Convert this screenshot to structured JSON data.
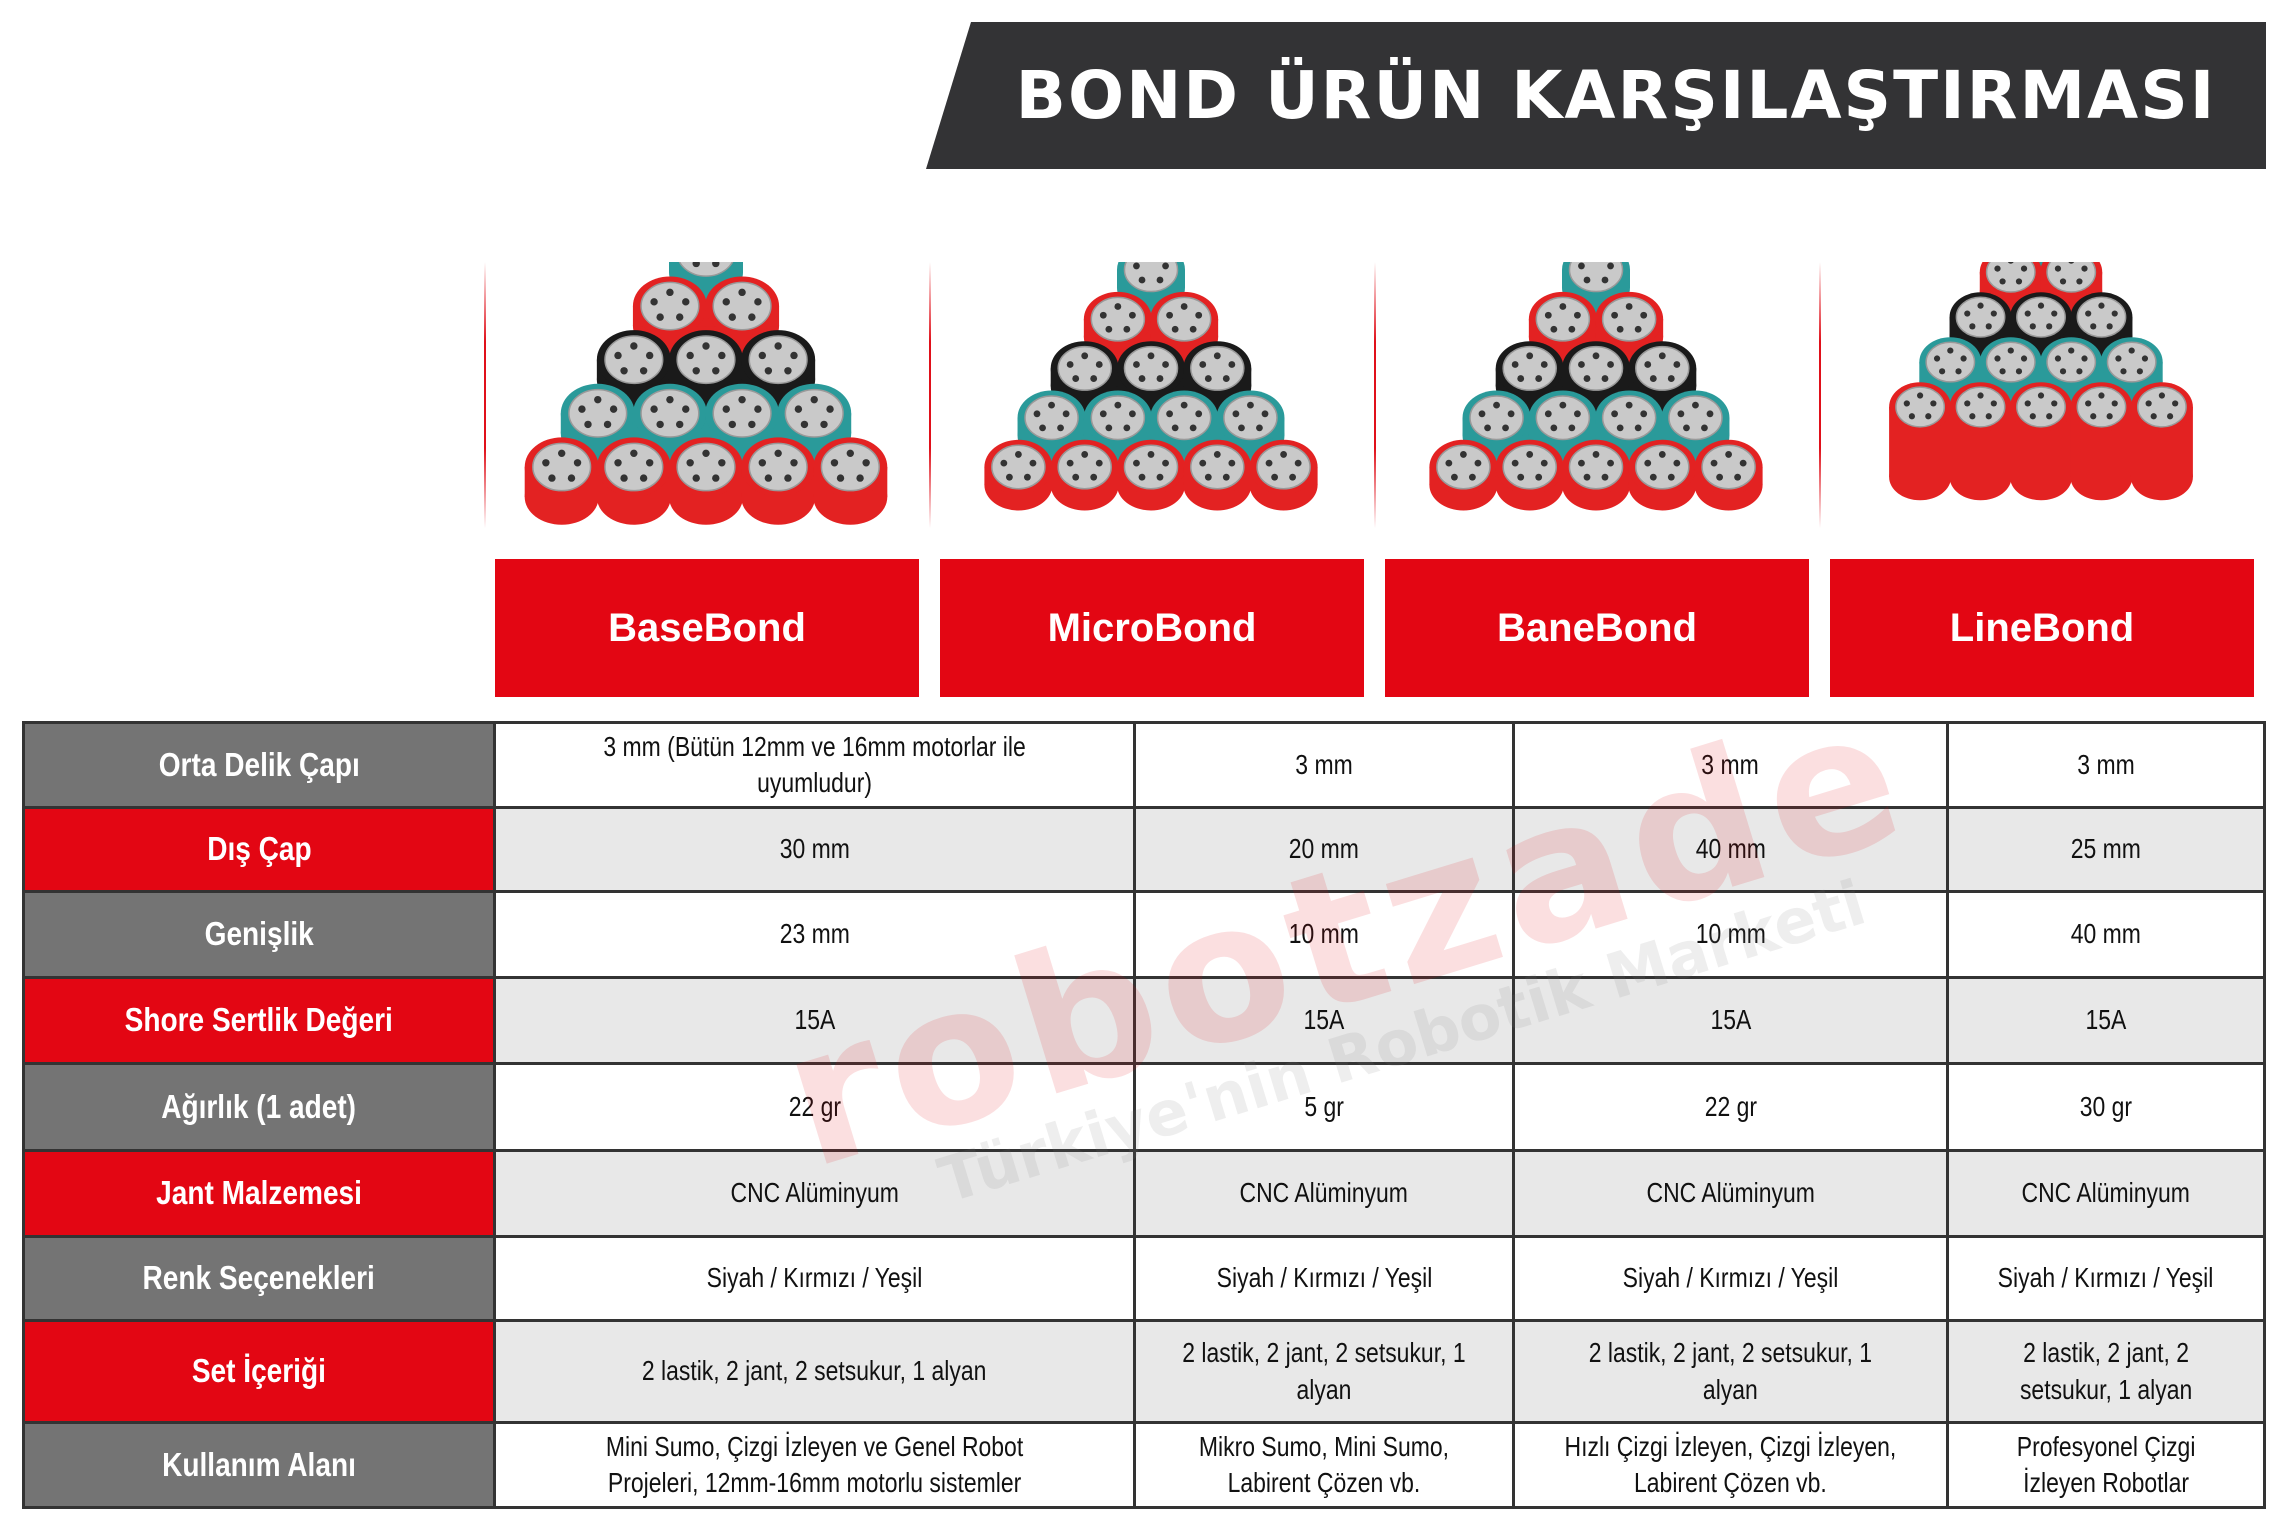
{
  "title": "BOND ÜRÜN KARŞILAŞTIRMASI",
  "watermark": {
    "brand": "robotzade",
    "tagline": "Türkiye'nin Robotik Marketi"
  },
  "colors": {
    "accent_red": "#e30613",
    "label_gray": "#747474",
    "banner": "#333335",
    "wheel_red": "#e32222",
    "wheel_teal": "#2a9a9a",
    "wheel_black": "#1a1a1a",
    "hub": "#c9c9c9"
  },
  "products": [
    {
      "name": "BaseBond",
      "wheel_rows": [
        "teal",
        "red",
        "black",
        "teal",
        "red"
      ],
      "wheel_style": "standard"
    },
    {
      "name": "MicroBond",
      "wheel_rows": [
        "teal",
        "red",
        "black",
        "teal",
        "red"
      ],
      "wheel_style": "narrow"
    },
    {
      "name": "BaneBond",
      "wheel_rows": [
        "teal",
        "red",
        "black",
        "teal",
        "red"
      ],
      "wheel_style": "narrow"
    },
    {
      "name": "LineBond",
      "wheel_rows": [
        "teal",
        "red",
        "black",
        "teal",
        "red"
      ],
      "wheel_style": "tall"
    }
  ],
  "rows": [
    {
      "label": "Orta Delik Çapı",
      "values": [
        "3 mm (Bütün 12mm ve 16mm motorlar ile uyumludur)",
        "3 mm",
        "3 mm",
        "3 mm"
      ]
    },
    {
      "label": "Dış Çap",
      "values": [
        "30 mm",
        "20 mm",
        "40 mm",
        "25 mm"
      ]
    },
    {
      "label": "Genişlik",
      "values": [
        "23 mm",
        "10 mm",
        "10 mm",
        "40 mm"
      ]
    },
    {
      "label": "Shore Sertlik Değeri",
      "values": [
        "15A",
        "15A",
        "15A",
        "15A"
      ]
    },
    {
      "label": "Ağırlık (1 adet)",
      "values": [
        "22 gr",
        "5 gr",
        "22 gr",
        "30 gr"
      ]
    },
    {
      "label": "Jant Malzemesi",
      "values": [
        "CNC Alüminyum",
        "CNC Alüminyum",
        "CNC Alüminyum",
        "CNC Alüminyum"
      ]
    },
    {
      "label": "Renk Seçenekleri",
      "values": [
        "Siyah / Kırmızı / Yeşil",
        "Siyah / Kırmızı / Yeşil",
        "Siyah / Kırmızı / Yeşil",
        "Siyah / Kırmızı / Yeşil"
      ]
    },
    {
      "label": "Set İçeriği",
      "values": [
        "2 lastik, 2 jant, 2 setsukur, 1 alyan",
        "2 lastik, 2 jant, 2 setsukur, 1 alyan",
        "2 lastik, 2 jant, 2 setsukur, 1 alyan",
        "2 lastik, 2 jant, 2 setsukur, 1 alyan"
      ]
    },
    {
      "label": "Kullanım Alanı",
      "values": [
        "Mini Sumo, Çizgi İzleyen ve Genel Robot Projeleri, 12mm-16mm motorlu sistemler",
        "Mikro Sumo, Mini Sumo, Labirent Çözen vb.",
        "Hızlı Çizgi İzleyen, Çizgi İzleyen, Labirent Çözen vb.",
        "Profesyonel Çizgi İzleyen Robotlar"
      ]
    }
  ]
}
